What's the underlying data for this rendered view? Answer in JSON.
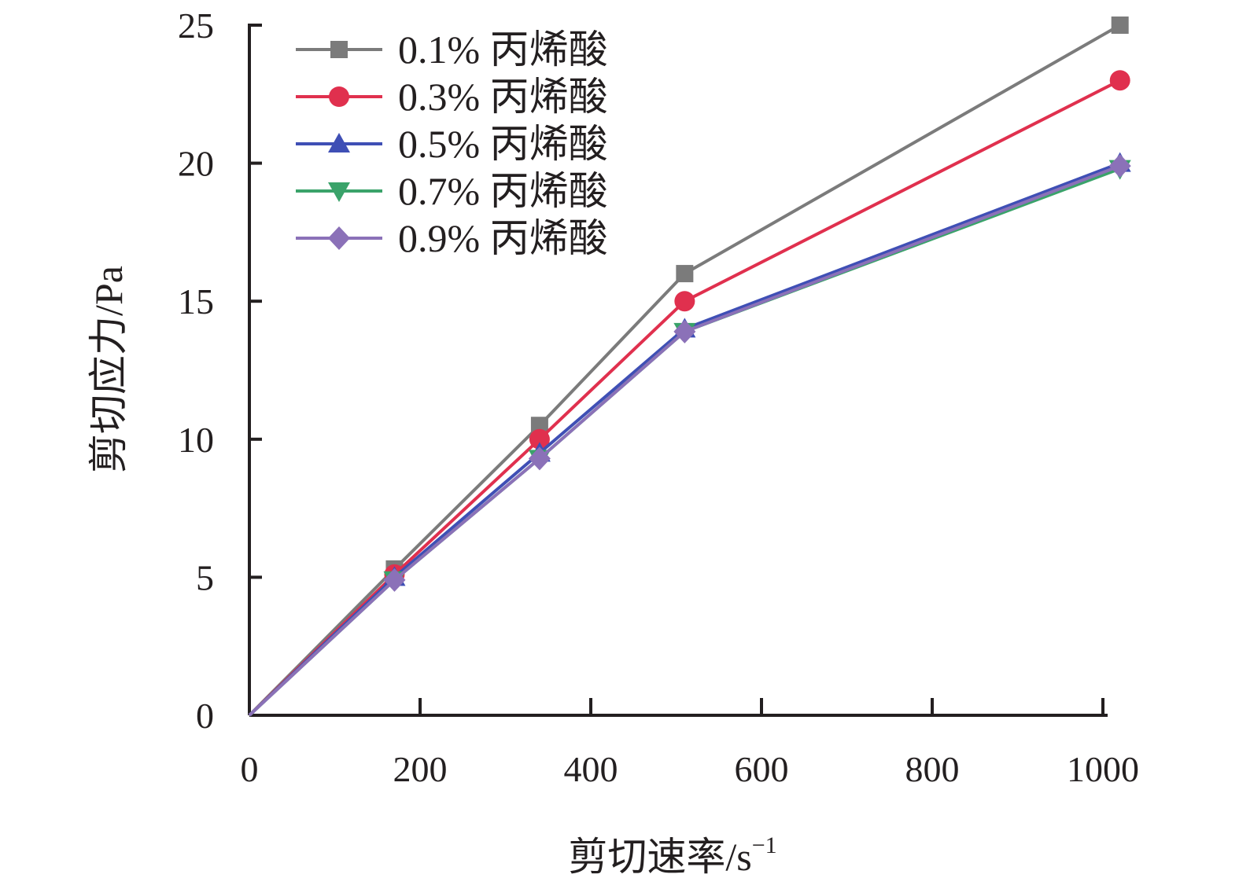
{
  "chart_data": {
    "type": "line",
    "xlabel": "剪切速率/s",
    "xlabel_sup": "−1",
    "ylabel": "剪切应力/Pa",
    "xlim": [
      0,
      1000
    ],
    "ylim": [
      0,
      25
    ],
    "xticks": [
      0,
      200,
      400,
      600,
      800,
      1000
    ],
    "yticks": [
      0,
      5,
      10,
      15,
      20,
      25
    ],
    "x": [
      0,
      170,
      340,
      510,
      1020
    ],
    "legend_position": "top-left",
    "grid": false,
    "series": [
      {
        "name": "0.1% 丙烯酸",
        "values": [
          0,
          5.3,
          10.5,
          16.0,
          25.0
        ],
        "color": "#7b7b7b",
        "marker": "square"
      },
      {
        "name": "0.3% 丙烯酸",
        "values": [
          0,
          5.1,
          10.0,
          15.0,
          23.0
        ],
        "color": "#e0304e",
        "marker": "circle"
      },
      {
        "name": "0.5% 丙烯酸",
        "values": [
          0,
          5.0,
          9.5,
          14.0,
          20.0
        ],
        "color": "#3f4fb5",
        "marker": "triangle-up"
      },
      {
        "name": "0.7% 丙烯酸",
        "values": [
          0,
          4.9,
          9.3,
          13.9,
          19.8
        ],
        "color": "#3aa36a",
        "marker": "triangle-down"
      },
      {
        "name": "0.9% 丙烯酸",
        "values": [
          0,
          4.9,
          9.3,
          13.9,
          19.9
        ],
        "color": "#8b71b8",
        "marker": "diamond"
      }
    ]
  }
}
